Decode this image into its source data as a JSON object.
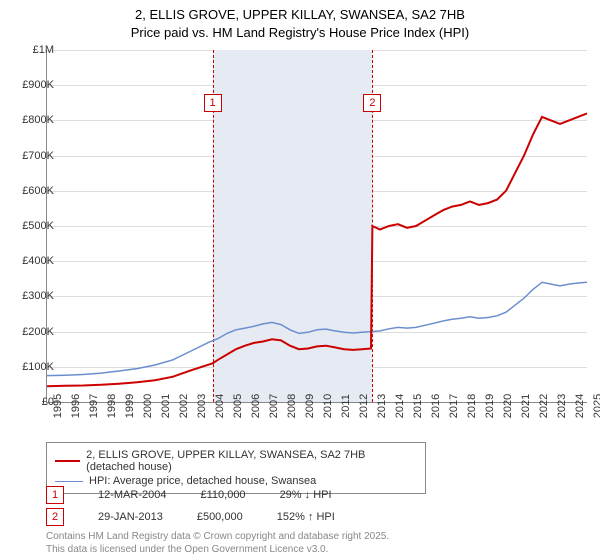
{
  "title_line1": "2, ELLIS GROVE, UPPER KILLAY, SWANSEA, SA2 7HB",
  "title_line2": "Price paid vs. HM Land Registry's House Price Index (HPI)",
  "chart": {
    "type": "line",
    "x_start_year": 1995,
    "x_end_year": 2025,
    "ylim": [
      0,
      1000000
    ],
    "ytick_step": 100000,
    "ytick_labels": [
      "£0",
      "£100K",
      "£200K",
      "£300K",
      "£400K",
      "£500K",
      "£600K",
      "£700K",
      "£800K",
      "£900K",
      "£1M"
    ],
    "xticks": [
      1995,
      1996,
      1997,
      1998,
      1999,
      2000,
      2001,
      2002,
      2003,
      2004,
      2005,
      2006,
      2007,
      2008,
      2009,
      2010,
      2011,
      2012,
      2013,
      2014,
      2015,
      2016,
      2017,
      2018,
      2019,
      2020,
      2021,
      2022,
      2023,
      2024,
      2025
    ],
    "background_color": "#ffffff",
    "grid_color": "#dddddd",
    "axis_color": "#888888",
    "shade_color": "#e5eaf3",
    "shade_start_year": 2004.2,
    "shade_end_year": 2013.08,
    "markers": [
      {
        "n": "1",
        "year": 2004.2,
        "box_top": 44
      },
      {
        "n": "2",
        "year": 2013.08,
        "box_top": 44
      }
    ],
    "series": [
      {
        "name": "price_paid",
        "label": "2, ELLIS GROVE, UPPER KILLAY, SWANSEA, SA2 7HB (detached house)",
        "color": "#cc0000",
        "width": 2,
        "points": [
          [
            1995.0,
            45000
          ],
          [
            1996.0,
            46000
          ],
          [
            1997.0,
            47000
          ],
          [
            1998.0,
            49000
          ],
          [
            1999.0,
            52000
          ],
          [
            2000.0,
            56000
          ],
          [
            2001.0,
            62000
          ],
          [
            2002.0,
            72000
          ],
          [
            2003.0,
            90000
          ],
          [
            2004.2,
            110000
          ],
          [
            2004.5,
            120000
          ],
          [
            2005.0,
            135000
          ],
          [
            2005.5,
            150000
          ],
          [
            2006.0,
            160000
          ],
          [
            2006.5,
            168000
          ],
          [
            2007.0,
            172000
          ],
          [
            2007.5,
            178000
          ],
          [
            2008.0,
            175000
          ],
          [
            2008.5,
            160000
          ],
          [
            2009.0,
            150000
          ],
          [
            2009.5,
            152000
          ],
          [
            2010.0,
            158000
          ],
          [
            2010.5,
            160000
          ],
          [
            2011.0,
            155000
          ],
          [
            2011.5,
            150000
          ],
          [
            2012.0,
            148000
          ],
          [
            2012.5,
            150000
          ],
          [
            2013.0,
            152000
          ],
          [
            2013.08,
            500000
          ],
          [
            2013.5,
            490000
          ],
          [
            2014.0,
            500000
          ],
          [
            2014.5,
            505000
          ],
          [
            2015.0,
            495000
          ],
          [
            2015.5,
            500000
          ],
          [
            2016.0,
            515000
          ],
          [
            2016.5,
            530000
          ],
          [
            2017.0,
            545000
          ],
          [
            2017.5,
            555000
          ],
          [
            2018.0,
            560000
          ],
          [
            2018.5,
            570000
          ],
          [
            2019.0,
            560000
          ],
          [
            2019.5,
            565000
          ],
          [
            2020.0,
            575000
          ],
          [
            2020.5,
            600000
          ],
          [
            2021.0,
            650000
          ],
          [
            2021.5,
            700000
          ],
          [
            2022.0,
            760000
          ],
          [
            2022.5,
            810000
          ],
          [
            2023.0,
            800000
          ],
          [
            2023.5,
            790000
          ],
          [
            2024.0,
            800000
          ],
          [
            2024.5,
            810000
          ],
          [
            2025.0,
            820000
          ]
        ]
      },
      {
        "name": "hpi",
        "label": "HPI: Average price, detached house, Swansea",
        "color": "#6a8fd0",
        "width": 1.5,
        "points": [
          [
            1995.0,
            75000
          ],
          [
            1996.0,
            76000
          ],
          [
            1997.0,
            78000
          ],
          [
            1998.0,
            82000
          ],
          [
            1999.0,
            88000
          ],
          [
            2000.0,
            95000
          ],
          [
            2001.0,
            105000
          ],
          [
            2002.0,
            120000
          ],
          [
            2003.0,
            145000
          ],
          [
            2004.0,
            170000
          ],
          [
            2004.5,
            180000
          ],
          [
            2005.0,
            195000
          ],
          [
            2005.5,
            205000
          ],
          [
            2006.0,
            210000
          ],
          [
            2006.5,
            215000
          ],
          [
            2007.0,
            222000
          ],
          [
            2007.5,
            226000
          ],
          [
            2008.0,
            220000
          ],
          [
            2008.5,
            205000
          ],
          [
            2009.0,
            195000
          ],
          [
            2009.5,
            198000
          ],
          [
            2010.0,
            205000
          ],
          [
            2010.5,
            207000
          ],
          [
            2011.0,
            202000
          ],
          [
            2011.5,
            198000
          ],
          [
            2012.0,
            196000
          ],
          [
            2012.5,
            198000
          ],
          [
            2013.0,
            200000
          ],
          [
            2013.5,
            202000
          ],
          [
            2014.0,
            208000
          ],
          [
            2014.5,
            212000
          ],
          [
            2015.0,
            210000
          ],
          [
            2015.5,
            212000
          ],
          [
            2016.0,
            218000
          ],
          [
            2016.5,
            224000
          ],
          [
            2017.0,
            230000
          ],
          [
            2017.5,
            235000
          ],
          [
            2018.0,
            238000
          ],
          [
            2018.5,
            242000
          ],
          [
            2019.0,
            238000
          ],
          [
            2019.5,
            240000
          ],
          [
            2020.0,
            245000
          ],
          [
            2020.5,
            255000
          ],
          [
            2021.0,
            275000
          ],
          [
            2021.5,
            295000
          ],
          [
            2022.0,
            320000
          ],
          [
            2022.5,
            340000
          ],
          [
            2023.0,
            335000
          ],
          [
            2023.5,
            330000
          ],
          [
            2024.0,
            335000
          ],
          [
            2024.5,
            338000
          ],
          [
            2025.0,
            340000
          ]
        ]
      }
    ]
  },
  "legend": {
    "border_color": "#888888"
  },
  "sales": [
    {
      "n": "1",
      "date": "12-MAR-2004",
      "price": "£110,000",
      "delta": "29% ↓ HPI"
    },
    {
      "n": "2",
      "date": "29-JAN-2013",
      "price": "£500,000",
      "delta": "152% ↑ HPI"
    }
  ],
  "footer_line1": "Contains HM Land Registry data © Crown copyright and database right 2025.",
  "footer_line2": "This data is licensed under the Open Government Licence v3.0."
}
